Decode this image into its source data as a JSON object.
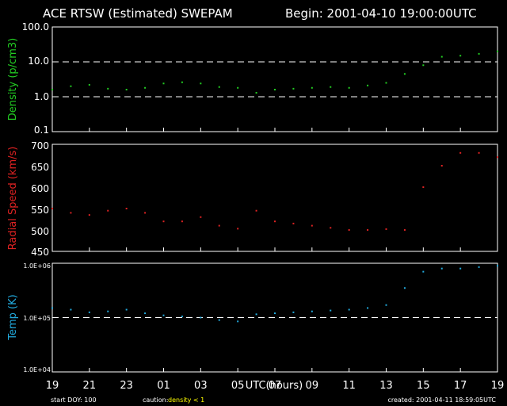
{
  "header": {
    "title": "ACE RTSW (Estimated) SWEPAM",
    "begin": "Begin: 2001-04-10 19:00:00UTC"
  },
  "footer": {
    "start_doy": "start DOY: 100",
    "caution_prefix": "caution:",
    "caution_value": "density < 1",
    "created": "created: 2001-04-11 18:59:05UTC"
  },
  "colors": {
    "density": "#22cc22",
    "speed": "#dd2222",
    "temp": "#22aadd",
    "caution": "#ffff00",
    "axes": "#ffffff"
  },
  "chart_data": [
    {
      "type": "scatter",
      "name": "density",
      "ylabel": "Density (p/cm3)",
      "scale": "log",
      "ylim": [
        0.1,
        100
      ],
      "yticks": [
        "100.0",
        "10.0",
        "1.0",
        "0.1"
      ],
      "dashed_lines": [
        10,
        1
      ],
      "x_unit": "hours since 19:00 UTC",
      "x": [
        0,
        1,
        2,
        3,
        4,
        5,
        6,
        7,
        8,
        9,
        10,
        10.5,
        11,
        12,
        13,
        14,
        15,
        16,
        17,
        18,
        19,
        20,
        21,
        22,
        23,
        24
      ],
      "y": [
        1.6,
        2.0,
        2.2,
        1.7,
        1.6,
        1.8,
        2.4,
        2.6,
        2.4,
        1.9,
        1.8,
        null,
        1.3,
        1.6,
        1.7,
        1.8,
        1.9,
        1.8,
        2.1,
        2.5,
        4.5,
        8,
        14,
        15,
        17,
        20
      ]
    },
    {
      "type": "scatter",
      "name": "speed",
      "ylabel": "Radial Speed (km/s)",
      "scale": "linear",
      "ylim": [
        450,
        700
      ],
      "yticks": [
        "700",
        "650",
        "600",
        "550",
        "500",
        "450"
      ],
      "x_unit": "hours since 19:00 UTC",
      "x": [
        0,
        1,
        2,
        3,
        4,
        5,
        6,
        7,
        8,
        9,
        10,
        10.5,
        11,
        12,
        13,
        14,
        15,
        16,
        17,
        18,
        19,
        20,
        21,
        22,
        23,
        24
      ],
      "y": [
        550,
        540,
        535,
        545,
        550,
        540,
        520,
        520,
        530,
        510,
        503,
        null,
        545,
        520,
        515,
        510,
        505,
        500,
        500,
        502,
        500,
        600,
        650,
        680,
        680,
        670
      ]
    },
    {
      "type": "scatter",
      "name": "temp",
      "ylabel": "Temp (K)",
      "scale": "log",
      "ylim": [
        10000,
        1000000
      ],
      "yticks": [
        "1.0E+06",
        "1.0E+05",
        "1.0E+04"
      ],
      "dashed_lines": [
        100000
      ],
      "x_unit": "hours since 19:00 UTC",
      "x": [
        0,
        1,
        2,
        3,
        4,
        5,
        6,
        7,
        8,
        9,
        10,
        10.5,
        11,
        12,
        13,
        14,
        15,
        16,
        17,
        18,
        19,
        20,
        21,
        22,
        23,
        24
      ],
      "y": [
        150000,
        140000,
        125000,
        130000,
        140000,
        120000,
        110000,
        105000,
        100000,
        90000,
        85000,
        null,
        115000,
        120000,
        125000,
        130000,
        135000,
        140000,
        150000,
        170000,
        350000,
        700000,
        800000,
        800000,
        850000,
        900000
      ]
    }
  ],
  "xaxis": {
    "label": "UTC(hours)",
    "ticks": [
      "19",
      "21",
      "23",
      "01",
      "03",
      "05",
      "07",
      "09",
      "11",
      "13",
      "15",
      "17",
      "19"
    ]
  }
}
